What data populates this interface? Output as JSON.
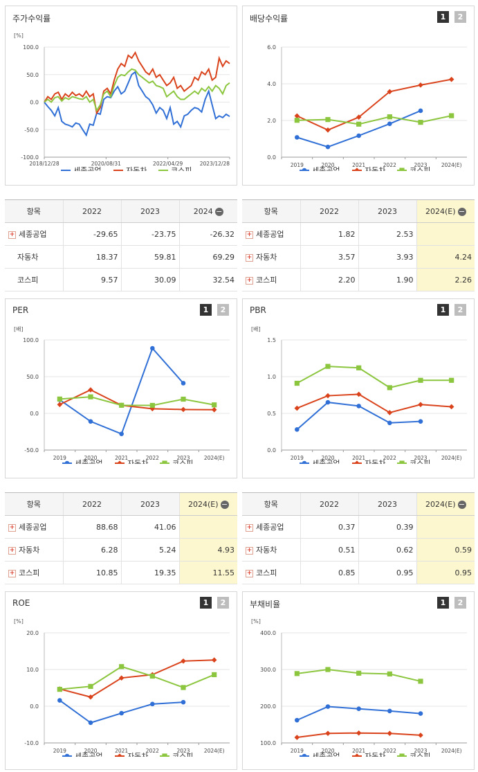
{
  "colors": {
    "sejong": "#2f6fd6",
    "auto": "#d9421a",
    "kospi": "#8cc63f",
    "grid": "#e6e6e6"
  },
  "legend": {
    "sejong": "세종공업",
    "auto": "자동차",
    "kospi": "코스피"
  },
  "pages": {
    "p1": "1",
    "p2": "2"
  },
  "stock": {
    "title": "주가수익률",
    "unit": "[%]",
    "yticks": [
      "100.0",
      "50.0",
      "0.0",
      "-50.0",
      "-100.0"
    ],
    "xticks": [
      "2018/12/28",
      "2020/08/31",
      "2022/04/29",
      "2023/12/28"
    ]
  },
  "dividend": {
    "title": "배당수익률",
    "unit": "",
    "yticks": [
      "6.0",
      "4.0",
      "2.0",
      "0.0"
    ],
    "xticks": [
      "2019",
      "2020",
      "2021",
      "2022",
      "2023",
      "2024(E)"
    ]
  },
  "per": {
    "title": "PER",
    "unit": "[배]",
    "yticks": [
      "100.0",
      "50.0",
      "0.0",
      "-50.0"
    ],
    "xticks": [
      "2019",
      "2020",
      "2021",
      "2022",
      "2023",
      "2024(E)"
    ]
  },
  "pbr": {
    "title": "PBR",
    "unit": "[배]",
    "yticks": [
      "1.5",
      "1.0",
      "0.5",
      "0.0"
    ],
    "xticks": [
      "2019",
      "2020",
      "2021",
      "2022",
      "2023",
      "2024(E)"
    ]
  },
  "roe": {
    "title": "ROE",
    "unit": "[%]",
    "yticks": [
      "20.0",
      "10.0",
      "0.0",
      "-10.0"
    ],
    "xticks": [
      "2019",
      "2020",
      "2021",
      "2022",
      "2023",
      "2024(E)"
    ]
  },
  "debt": {
    "title": "부채비율",
    "unit": "[%]",
    "yticks": [
      "400.0",
      "300.0",
      "200.0",
      "100.0"
    ],
    "xticks": [
      "2019",
      "2020",
      "2021",
      "2022",
      "2023",
      "2024(E)"
    ]
  },
  "tables": {
    "stock": {
      "headers": [
        "항목",
        "2022",
        "2023",
        "2024"
      ],
      "rows": [
        {
          "name": "세종공업",
          "plus": true,
          "v": [
            "-29.65",
            "-23.75",
            "-26.32"
          ]
        },
        {
          "name": "자동차",
          "plus": false,
          "v": [
            "18.37",
            "59.81",
            "69.29"
          ]
        },
        {
          "name": "코스피",
          "plus": false,
          "v": [
            "9.57",
            "30.09",
            "32.54"
          ]
        }
      ]
    },
    "dividend": {
      "headers": [
        "항목",
        "2022",
        "2023",
        "2024(E)"
      ],
      "rows": [
        {
          "name": "세종공업",
          "plus": true,
          "v": [
            "1.82",
            "2.53",
            ""
          ]
        },
        {
          "name": "자동차",
          "plus": true,
          "v": [
            "3.57",
            "3.93",
            "4.24"
          ]
        },
        {
          "name": "코스피",
          "plus": true,
          "v": [
            "2.20",
            "1.90",
            "2.26"
          ]
        }
      ]
    },
    "per": {
      "headers": [
        "항목",
        "2022",
        "2023",
        "2024(E)"
      ],
      "rows": [
        {
          "name": "세종공업",
          "plus": true,
          "v": [
            "88.68",
            "41.06",
            ""
          ]
        },
        {
          "name": "자동차",
          "plus": true,
          "v": [
            "6.28",
            "5.24",
            "4.93"
          ]
        },
        {
          "name": "코스피",
          "plus": true,
          "v": [
            "10.85",
            "19.35",
            "11.55"
          ]
        }
      ]
    },
    "pbr": {
      "headers": [
        "항목",
        "2022",
        "2023",
        "2024(E)"
      ],
      "rows": [
        {
          "name": "세종공업",
          "plus": true,
          "v": [
            "0.37",
            "0.39",
            ""
          ]
        },
        {
          "name": "자동차",
          "plus": true,
          "v": [
            "0.51",
            "0.62",
            "0.59"
          ]
        },
        {
          "name": "코스피",
          "plus": true,
          "v": [
            "0.85",
            "0.95",
            "0.95"
          ]
        }
      ]
    }
  },
  "chart_data": [
    {
      "id": "stock",
      "type": "line",
      "title": "주가수익률",
      "ylabel": "[%]",
      "ylim": [
        -100,
        100
      ],
      "xlabels": [
        "2018/12/28",
        "2020/08/31",
        "2022/04/29",
        "2023/12/28"
      ],
      "series": [
        {
          "name": "세종공업",
          "values": [
            0,
            -8,
            -15,
            -25,
            -10,
            -35,
            -40,
            -42,
            -45,
            -38,
            -40,
            -50,
            -60,
            -40,
            -42,
            -20,
            -22,
            5,
            10,
            8,
            20,
            28,
            15,
            20,
            35,
            50,
            55,
            30,
            20,
            10,
            5,
            -5,
            -20,
            -10,
            -15,
            -30,
            -10,
            -40,
            -35,
            -45,
            -25,
            -22,
            -15,
            -10,
            -12,
            -18,
            5,
            20,
            -5,
            -30,
            -25,
            -28,
            -22,
            -26
          ]
        },
        {
          "name": "자동차",
          "values": [
            0,
            10,
            5,
            15,
            18,
            5,
            15,
            10,
            18,
            12,
            15,
            10,
            20,
            10,
            15,
            -20,
            -10,
            20,
            25,
            15,
            40,
            60,
            70,
            65,
            85,
            80,
            90,
            75,
            65,
            55,
            50,
            60,
            45,
            50,
            40,
            30,
            35,
            45,
            25,
            30,
            20,
            25,
            30,
            45,
            40,
            55,
            50,
            60,
            40,
            45,
            80,
            65,
            75,
            70
          ]
        },
        {
          "name": "코스피",
          "values": [
            0,
            5,
            0,
            8,
            10,
            2,
            8,
            5,
            10,
            8,
            6,
            5,
            10,
            0,
            5,
            -15,
            -5,
            15,
            20,
            10,
            30,
            45,
            50,
            48,
            55,
            60,
            58,
            50,
            45,
            40,
            35,
            38,
            30,
            28,
            25,
            10,
            15,
            20,
            10,
            5,
            5,
            10,
            15,
            20,
            15,
            25,
            20,
            28,
            20,
            30,
            25,
            15,
            30,
            35
          ]
        }
      ]
    },
    {
      "id": "dividend",
      "type": "line",
      "title": "배당수익률",
      "ylim": [
        0,
        6
      ],
      "categories": [
        "2019",
        "2020",
        "2021",
        "2022",
        "2023",
        "2024(E)"
      ],
      "series": [
        {
          "name": "세종공업",
          "values": [
            1.08,
            0.56,
            1.17,
            1.82,
            2.53,
            null
          ]
        },
        {
          "name": "자동차",
          "values": [
            2.25,
            1.48,
            2.18,
            3.57,
            3.93,
            4.24
          ]
        },
        {
          "name": "코스피",
          "values": [
            2.01,
            2.05,
            1.8,
            2.2,
            1.9,
            2.26
          ]
        }
      ]
    },
    {
      "id": "per",
      "type": "line",
      "title": "PER",
      "ylabel": "[배]",
      "ylim": [
        -50,
        100
      ],
      "categories": [
        "2019",
        "2020",
        "2021",
        "2022",
        "2023",
        "2024(E)"
      ],
      "series": [
        {
          "name": "세종공업",
          "values": [
            18.5,
            -11,
            -28,
            88.68,
            41.06,
            null
          ]
        },
        {
          "name": "자동차",
          "values": [
            12,
            32,
            11,
            6.28,
            5.24,
            4.93
          ]
        },
        {
          "name": "코스피",
          "values": [
            19.5,
            22.5,
            11,
            10.85,
            19.35,
            11.55
          ]
        }
      ]
    },
    {
      "id": "pbr",
      "type": "line",
      "title": "PBR",
      "ylabel": "[배]",
      "ylim": [
        0,
        1.5
      ],
      "categories": [
        "2019",
        "2020",
        "2021",
        "2022",
        "2023",
        "2024(E)"
      ],
      "series": [
        {
          "name": "세종공업",
          "values": [
            0.28,
            0.65,
            0.6,
            0.37,
            0.39,
            null
          ]
        },
        {
          "name": "자동차",
          "values": [
            0.57,
            0.74,
            0.76,
            0.51,
            0.62,
            0.59
          ]
        },
        {
          "name": "코스피",
          "values": [
            0.91,
            1.14,
            1.12,
            0.85,
            0.95,
            0.95
          ]
        }
      ]
    },
    {
      "id": "roe",
      "type": "line",
      "title": "ROE",
      "ylabel": "[%]",
      "ylim": [
        -10,
        20
      ],
      "categories": [
        "2019",
        "2020",
        "2021",
        "2022",
        "2023",
        "2024(E)"
      ],
      "series": [
        {
          "name": "세종공업",
          "values": [
            1.6,
            -4.5,
            -1.9,
            0.6,
            1.1,
            null
          ]
        },
        {
          "name": "자동차",
          "values": [
            4.7,
            2.5,
            7.7,
            8.6,
            12.3,
            12.6
          ]
        },
        {
          "name": "코스피",
          "values": [
            4.6,
            5.4,
            10.8,
            8.2,
            5.1,
            8.6
          ]
        }
      ]
    },
    {
      "id": "debt",
      "type": "line",
      "title": "부채비율",
      "ylabel": "[%]",
      "ylim": [
        100,
        400
      ],
      "categories": [
        "2019",
        "2020",
        "2021",
        "2022",
        "2023",
        "2024(E)"
      ],
      "series": [
        {
          "name": "세종공업",
          "values": [
            162,
            199,
            193,
            187,
            180,
            null
          ]
        },
        {
          "name": "자동차",
          "values": [
            115,
            126,
            127,
            126,
            121,
            null
          ]
        },
        {
          "name": "코스피",
          "values": [
            289,
            300,
            290,
            288,
            268,
            null
          ]
        }
      ]
    }
  ]
}
